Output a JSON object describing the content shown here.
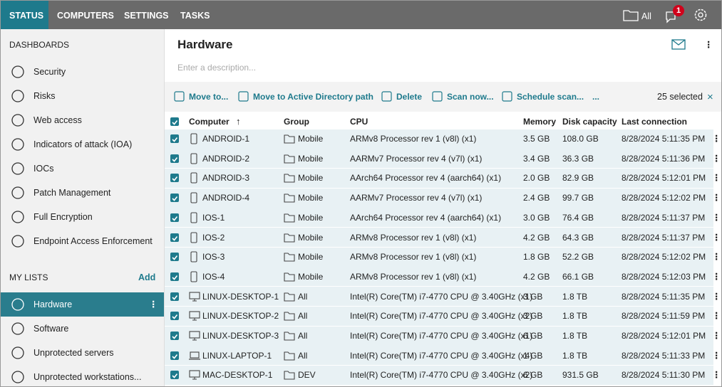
{
  "nav": {
    "tabs": [
      "STATUS",
      "COMPUTERS",
      "SETTINGS",
      "TASKS"
    ],
    "all": "All",
    "notifications": "1"
  },
  "sidebar": {
    "dashboards_title": "DASHBOARDS",
    "dashboards": [
      "Security",
      "Risks",
      "Web access",
      "Indicators of attack (IOA)",
      "IOCs",
      "Patch Management",
      "Full Encryption",
      "Endpoint Access Enforcement"
    ],
    "my_lists_title": "MY LISTS",
    "add": "Add",
    "lists": [
      "Hardware",
      "Software",
      "Unprotected servers",
      "Unprotected workstations..."
    ]
  },
  "main": {
    "title": "Hardware",
    "description_placeholder": "Enter a description..."
  },
  "toolbar": {
    "actions": [
      "Move to...",
      "Move to Active Directory path",
      "Delete",
      "Scan now...",
      "Schedule scan...",
      "..."
    ],
    "selected": "25 selected"
  },
  "table": {
    "columns": [
      "Computer",
      "Group",
      "CPU",
      "Memory",
      "Disk capacity",
      "Last connection"
    ],
    "rows": [
      [
        "ANDROID-1",
        "Mobile",
        "ARMv8 Processor rev 1 (v8l) (x1)",
        "3.5 GB",
        "108.0 GB",
        "8/28/2024 5:11:35 PM"
      ],
      [
        "ANDROID-2",
        "Mobile",
        "AARMv7 Processor rev 4 (v7l) (x1)",
        "3.4 GB",
        "36.3 GB",
        "8/28/2024 5:11:36 PM"
      ],
      [
        "ANDROID-3",
        "Mobile",
        "AArch64 Processor rev 4 (aarch64) (x1)",
        "2.0 GB",
        "82.9 GB",
        "8/28/2024 5:12:01 PM"
      ],
      [
        "ANDROID-4",
        "Mobile",
        "AARMv7 Processor rev 4 (v7l) (x1)",
        "2.4 GB",
        "99.7 GB",
        "8/28/2024 5:12:02 PM"
      ],
      [
        "IOS-1",
        "Mobile",
        "AArch64 Processor rev 4 (aarch64) (x1)",
        "3.0 GB",
        "76.4 GB",
        "8/28/2024 5:11:37 PM"
      ],
      [
        "IOS-2",
        "Mobile",
        "ARMv8 Processor rev 1 (v8l) (x1)",
        "4.2 GB",
        "64.3 GB",
        "8/28/2024 5:11:37 PM"
      ],
      [
        "IOS-3",
        "Mobile",
        "ARMv8 Processor rev 1 (v8l) (x1)",
        "1.8 GB",
        "52.2 GB",
        "8/28/2024 5:12:02 PM"
      ],
      [
        "IOS-4",
        "Mobile",
        "ARMv8 Processor rev 1 (v8l) (x1)",
        "4.2 GB",
        "66.1 GB",
        "8/28/2024 5:12:03 PM"
      ],
      [
        "LINUX-DESKTOP-1",
        "All",
        "Intel(R) Core(TM) i7-4770 CPU @ 3.40GHz (x1)",
        "3 GB",
        "1.8 TB",
        "8/28/2024 5:11:35 PM"
      ],
      [
        "LINUX-DESKTOP-2",
        "All",
        "Intel(R) Core(TM) i7-4770 CPU @ 3.40GHz (x2)",
        "3 GB",
        "1.8 TB",
        "8/28/2024 5:11:59 PM"
      ],
      [
        "LINUX-DESKTOP-3",
        "All",
        "Intel(R) Core(TM) i7-4770 CPU @ 3.40GHz (x1)",
        "6 GB",
        "1.8 TB",
        "8/28/2024 5:12:01 PM"
      ],
      [
        "LINUX-LAPTOP-1",
        "All",
        "Intel(R) Core(TM) i7-4770 CPU @ 3.40GHz (x4)",
        "1 GB",
        "1.8 TB",
        "8/28/2024 5:11:33 PM"
      ],
      [
        "MAC-DESKTOP-1",
        "DEV",
        "Intel(R) Core(TM) i7-4770 CPU @ 3.40GHz (x2)",
        "6 GB",
        "931.5 GB",
        "8/28/2024 5:11:30 PM"
      ]
    ]
  }
}
